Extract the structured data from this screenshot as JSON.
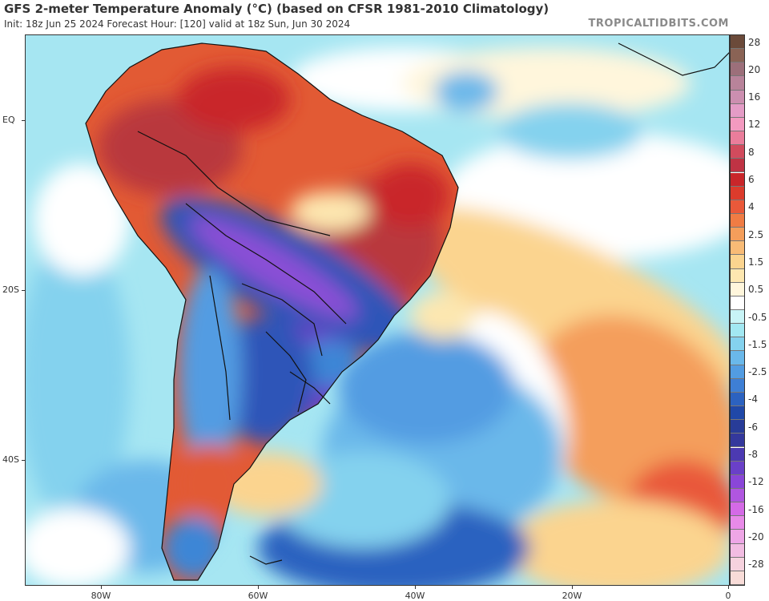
{
  "header": {
    "title": "GFS 2-meter Temperature Anomaly (°C) (based on CFSR 1981-2010 Climatology)",
    "subtitle": "Init: 18z Jun 25 2024   Forecast Hour: [120]   valid at 18z Sun, Jun 30 2024",
    "credit": "TROPICALTIDBITS.COM"
  },
  "axes": {
    "latitudes": [
      {
        "label": "EQ",
        "value": 0
      },
      {
        "label": "20S",
        "value": -20
      },
      {
        "label": "40S",
        "value": -40
      }
    ],
    "longitudes": [
      {
        "label": "80W",
        "value": -80
      },
      {
        "label": "60W",
        "value": -60
      },
      {
        "label": "40W",
        "value": -40
      },
      {
        "label": "20W",
        "value": -20
      },
      {
        "label": "0",
        "value": 0
      }
    ]
  },
  "colorbar": {
    "unit": "°C",
    "levels": [
      {
        "label": "28",
        "color": "#6b4a3a"
      },
      {
        "label": "",
        "color": "#8a6355"
      },
      {
        "label": "20",
        "color": "#9c6f7a"
      },
      {
        "label": "",
        "color": "#b8839a"
      },
      {
        "label": "16",
        "color": "#cc8fb0"
      },
      {
        "label": "",
        "color": "#e49cc6"
      },
      {
        "label": "12",
        "color": "#f39ac0"
      },
      {
        "label": "",
        "color": "#ea7d9b"
      },
      {
        "label": "8",
        "color": "#d14b5d"
      },
      {
        "label": "",
        "color": "#bf3344"
      },
      {
        "label": "6",
        "color": "#c9262a"
      },
      {
        "label": "",
        "color": "#dc3b2c"
      },
      {
        "label": "4",
        "color": "#e9593a"
      },
      {
        "label": "",
        "color": "#f07c44"
      },
      {
        "label": "2.5",
        "color": "#f49e5b"
      },
      {
        "label": "",
        "color": "#f8bb76"
      },
      {
        "label": "1.5",
        "color": "#fbd48f"
      },
      {
        "label": "",
        "color": "#fde7b0"
      },
      {
        "label": "0.5",
        "color": "#fff6dc"
      },
      {
        "label": "",
        "color": "#ffffff"
      },
      {
        "label": "-0.5",
        "color": "#c8f4f6"
      },
      {
        "label": "",
        "color": "#a2e8f2"
      },
      {
        "label": "-1.5",
        "color": "#84d2ee"
      },
      {
        "label": "",
        "color": "#6ab8ea"
      },
      {
        "label": "-2.5",
        "color": "#529ce2"
      },
      {
        "label": "",
        "color": "#3e7fd5"
      },
      {
        "label": "-4",
        "color": "#2c62c0"
      },
      {
        "label": "",
        "color": "#2048a8"
      },
      {
        "label": "-6",
        "color": "#283c98"
      },
      {
        "label": "",
        "color": "#34389c"
      },
      {
        "label": "-8",
        "color": "#4c3ab2"
      },
      {
        "label": "",
        "color": "#6a40c8"
      },
      {
        "label": "-12",
        "color": "#8a46d8"
      },
      {
        "label": "",
        "color": "#b056e0"
      },
      {
        "label": "-16",
        "color": "#d46ae6"
      },
      {
        "label": "",
        "color": "#e88ae8"
      },
      {
        "label": "-20",
        "color": "#eea6e6"
      },
      {
        "label": "",
        "color": "#f2bce2"
      },
      {
        "label": "-28",
        "color": "#f6d2de"
      },
      {
        "label": "",
        "color": "#f8dcd8"
      }
    ]
  },
  "map": {
    "colors": {
      "ocean_base": "#a6e6f2",
      "warm_land": "#e25a34",
      "hot_land": "#b9373e",
      "cold_core": "#8a50d6",
      "cold_land": "#2e55b8",
      "cold_ocean": "#3c86d6",
      "deep_cold": "#2a5cc4",
      "mild_warm": "#fbd7a0",
      "warm_band": "#f2a062",
      "neutral": "#fffaf0",
      "boundary": "#111111"
    }
  }
}
